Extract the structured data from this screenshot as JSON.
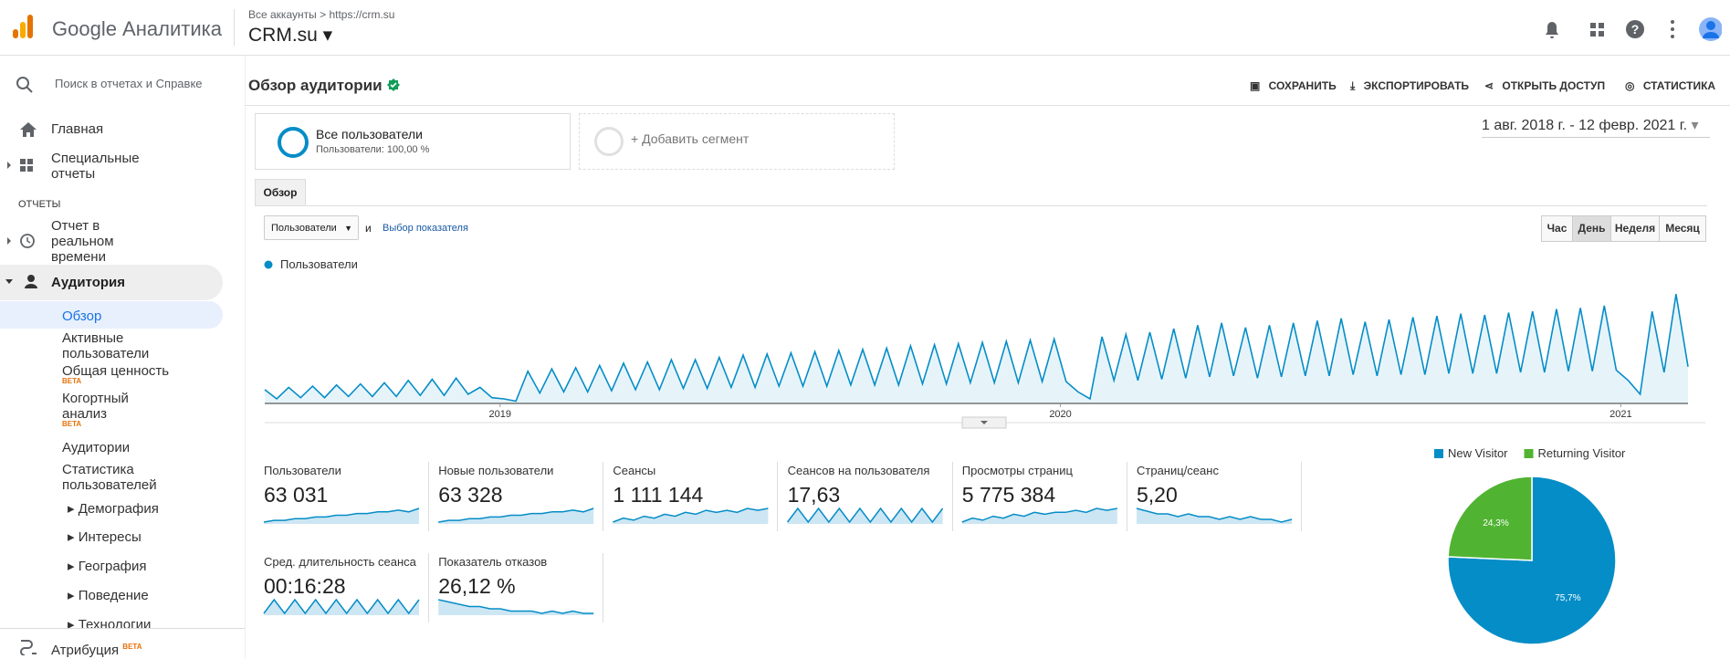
{
  "header": {
    "product": "Google Аналитика",
    "breadcrumb": [
      "Все аккаунты",
      "https://crm.su"
    ],
    "account": "CRM.su"
  },
  "sidebar": {
    "search": "Поиск в отчетах и Справке",
    "home": "Главная",
    "custom": "Специальные отчеты",
    "section": "ОТЧЕТЫ",
    "realtime": "Отчет в реальном времени",
    "audience": "Аудитория",
    "audience_items": [
      "Обзор",
      "Активные пользователи",
      "Общая ценность",
      "Когортный анализ",
      "Аудитории",
      "Статистика пользователей"
    ],
    "beta": "BETA",
    "groups": [
      "Демография",
      "Интересы",
      "География",
      "Поведение",
      "Технологии"
    ],
    "attribution": "Атрибуция"
  },
  "page": {
    "title": "Обзор аудитории",
    "actions": [
      "СОХРАНИТЬ",
      "ЭКСПОРТИРОВАТЬ",
      "ОТКРЫТЬ ДОСТУП",
      "СТАТИСТИКА"
    ],
    "segment": {
      "name": "Все пользователи",
      "detail": "Пользователи: 100,00 %"
    },
    "add_segment": "+ Добавить сегмент",
    "date_range": "1 авг. 2018 г. - 12 февр. 2021 г.",
    "tab": "Обзор",
    "metric_select": "Пользователи",
    "and": "и",
    "choose_metric": "Выбор показателя",
    "granularity": [
      "Час",
      "День",
      "Неделя",
      "Месяц"
    ]
  },
  "chart_data": [
    {
      "type": "line",
      "series": [
        {
          "name": "Пользователи",
          "color": "#058dc7",
          "values": [
            12,
            4,
            14,
            5,
            15,
            5,
            16,
            6,
            17,
            6,
            18,
            6,
            20,
            7,
            21,
            7,
            22,
            8,
            14,
            5,
            4,
            2,
            28,
            9,
            30,
            10,
            31,
            10,
            33,
            11,
            35,
            12,
            36,
            12,
            38,
            13,
            38,
            13,
            40,
            14,
            42,
            14,
            43,
            15,
            44,
            15,
            45,
            15,
            46,
            16,
            47,
            16,
            48,
            16,
            50,
            17,
            51,
            17,
            52,
            18,
            53,
            18,
            54,
            18,
            55,
            19,
            56,
            19,
            10,
            4,
            58,
            20,
            60,
            20,
            62,
            21,
            65,
            22,
            68,
            23,
            70,
            24,
            66,
            22,
            68,
            23,
            70,
            24,
            72,
            24,
            74,
            25,
            71,
            24,
            73,
            25,
            75,
            25,
            76,
            26,
            78,
            26,
            77,
            26,
            79,
            27,
            80,
            27,
            82,
            28,
            83,
            28,
            85,
            29,
            20,
            8,
            80,
            27,
            95,
            32
          ]
        }
      ],
      "xlim": [
        2018.58,
        2021.12
      ],
      "xticks": [
        2019,
        2020,
        2021
      ],
      "ylim": [
        0,
        100
      ]
    },
    {
      "type": "pie",
      "categories": [
        "New Visitor",
        "Returning Visitor"
      ],
      "values": [
        75.7,
        24.3
      ],
      "value_labels": [
        "75,7%",
        "24,3%"
      ],
      "colors": [
        "#058dc7",
        "#50b432"
      ]
    }
  ],
  "metrics": [
    {
      "name": "Пользователи",
      "value": "63 031",
      "trend": [
        3,
        4,
        4,
        5,
        5,
        6,
        6,
        7,
        7,
        8,
        8,
        9,
        9,
        10,
        9,
        11
      ]
    },
    {
      "name": "Новые пользователи",
      "value": "63 328",
      "trend": [
        3,
        4,
        4,
        5,
        5,
        6,
        6,
        7,
        7,
        8,
        8,
        9,
        9,
        10,
        9,
        11
      ]
    },
    {
      "name": "Сеансы",
      "value": "1 111 144",
      "trend": [
        3,
        5,
        4,
        6,
        5,
        7,
        6,
        8,
        7,
        9,
        8,
        9,
        8,
        10,
        9,
        10
      ]
    },
    {
      "name": "Сеансов на пользователя",
      "value": "17,63",
      "trend": [
        8,
        9,
        8,
        9,
        8,
        9,
        8,
        9,
        8,
        9,
        8,
        9,
        8,
        9,
        8,
        9
      ]
    },
    {
      "name": "Просмотры страниц",
      "value": "5 775 384",
      "trend": [
        3,
        5,
        4,
        6,
        5,
        7,
        6,
        8,
        7,
        8,
        8,
        9,
        8,
        10,
        9,
        10
      ]
    },
    {
      "name": "Страниц/сеанс",
      "value": "5,20",
      "trend": [
        9,
        8,
        7,
        7,
        6,
        7,
        6,
        6,
        5,
        6,
        5,
        6,
        5,
        5,
        4,
        5
      ]
    },
    {
      "name": "Сред. длительность сеанса",
      "value": "00:16:28",
      "trend": [
        8,
        9,
        8,
        9,
        8,
        9,
        8,
        9,
        8,
        9,
        8,
        9,
        8,
        9,
        8,
        9
      ]
    },
    {
      "name": "Показатель отказов",
      "value": "26,12 %",
      "trend": [
        9,
        8,
        7,
        6,
        6,
        5,
        5,
        4,
        4,
        4,
        3,
        4,
        3,
        4,
        3,
        3
      ]
    }
  ]
}
